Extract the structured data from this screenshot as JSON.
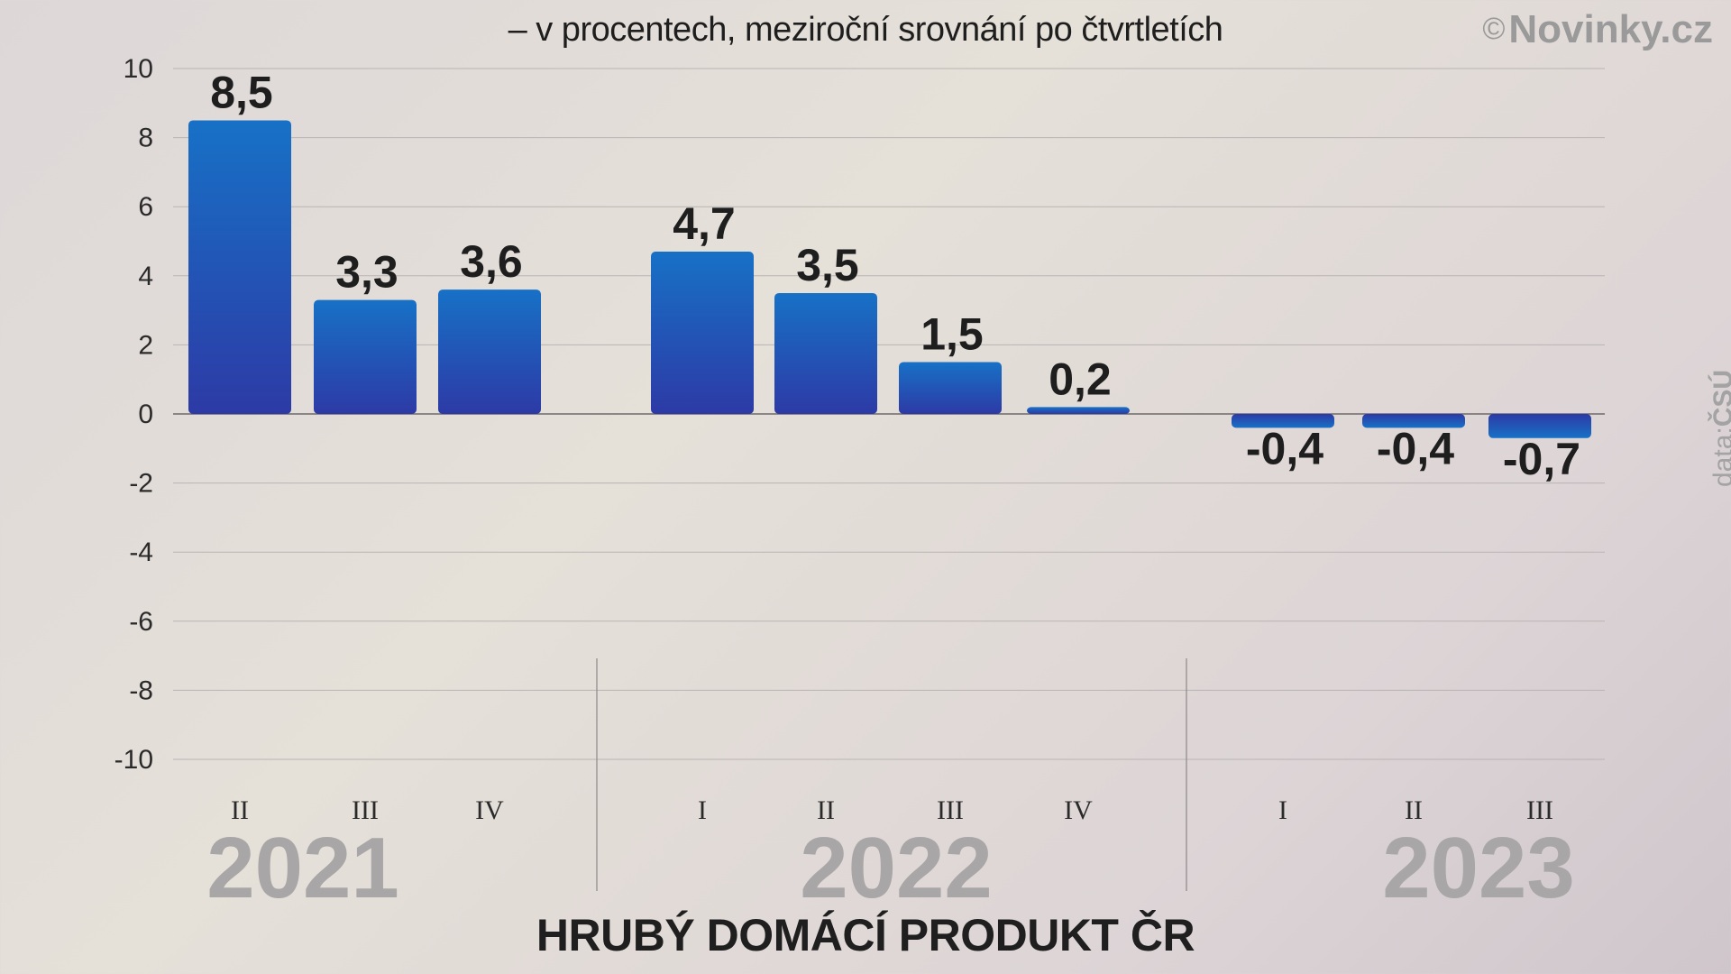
{
  "header": {
    "subtitle": "– v procentech, meziroční srovnání po čtvrtletích",
    "brand_symbol": "©",
    "brand_name": "Novinky.cz"
  },
  "source": {
    "prefix": "data:",
    "name": "ČSÚ"
  },
  "footer": {
    "title": "HRUBÝ DOMÁCÍ PRODUKT ČR"
  },
  "colors": {
    "bar_top": "#1771c6",
    "bar_bottom": "#2d3aa6",
    "grid": "#b9b4b3",
    "zero_line": "#6e6a6a",
    "year": "#a8a6a6"
  },
  "chart_data": {
    "type": "bar",
    "title": "HRUBÝ DOMÁCÍ PRODUKT ČR",
    "subtitle": "– v procentech, meziroční srovnání po čtvrtletích",
    "ylim": [
      -10,
      10
    ],
    "yticks": [
      "10",
      "8",
      "6",
      "4",
      "2",
      "0",
      "-2",
      "-4",
      "-6",
      "-8",
      "-10"
    ],
    "grid": true,
    "groups": [
      {
        "year": "2021",
        "bars": [
          {
            "quarter": "II",
            "value": 8.5,
            "label": "8,5"
          },
          {
            "quarter": "III",
            "value": 3.3,
            "label": "3,3"
          },
          {
            "quarter": "IV",
            "value": 3.6,
            "label": "3,6"
          }
        ]
      },
      {
        "year": "2022",
        "bars": [
          {
            "quarter": "I",
            "value": 4.7,
            "label": "4,7"
          },
          {
            "quarter": "II",
            "value": 3.5,
            "label": "3,5"
          },
          {
            "quarter": "III",
            "value": 1.5,
            "label": "1,5"
          },
          {
            "quarter": "IV",
            "value": 0.2,
            "label": "0,2"
          }
        ]
      },
      {
        "year": "2023",
        "bars": [
          {
            "quarter": "I",
            "value": -0.4,
            "label": "-0,4"
          },
          {
            "quarter": "II",
            "value": -0.4,
            "label": "-0,4"
          },
          {
            "quarter": "III",
            "value": -0.7,
            "label": "-0,7"
          }
        ]
      }
    ]
  }
}
